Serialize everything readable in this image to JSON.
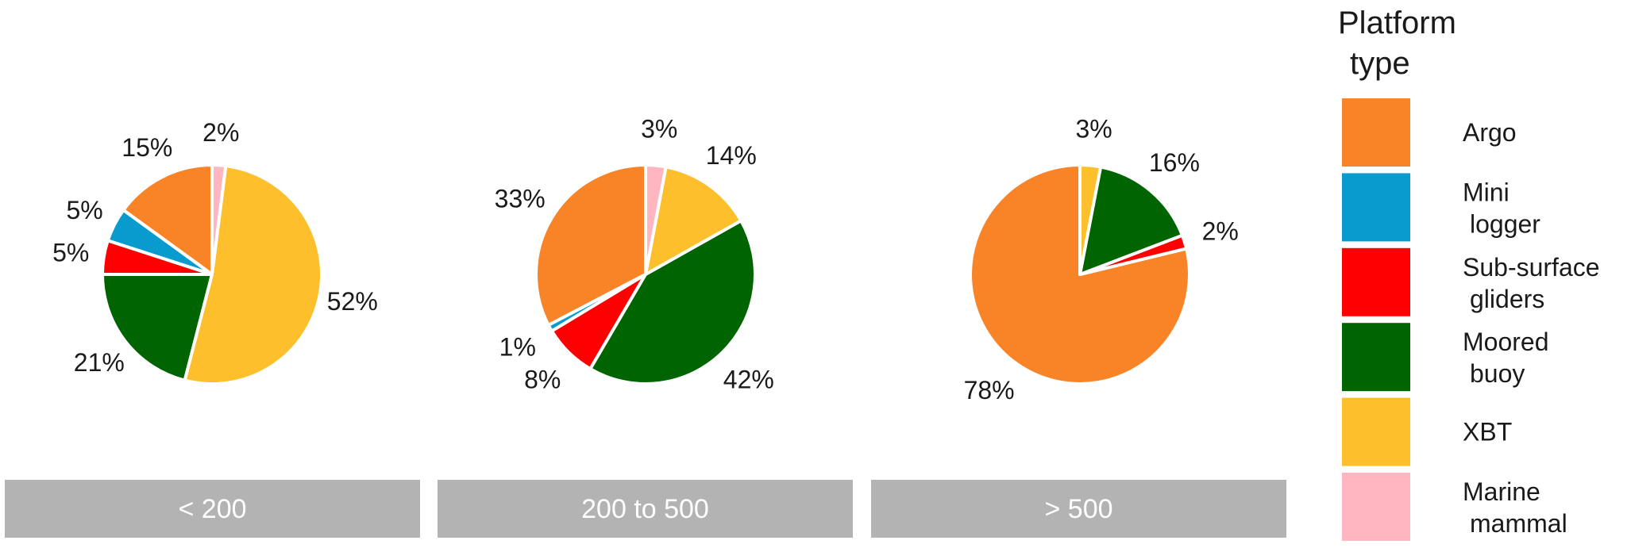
{
  "chart_data": {
    "type": "pie",
    "legend": {
      "title_lines": [
        "Platform",
        "type"
      ],
      "placement": "right",
      "entries": [
        {
          "label_lines": [
            "Argo"
          ],
          "color": "#F98427"
        },
        {
          "label_lines": [
            "Mini",
            "logger"
          ],
          "color": "#0A9BCE"
        },
        {
          "label_lines": [
            "Sub-surface",
            "gliders"
          ],
          "color": "#FF0000"
        },
        {
          "label_lines": [
            "Moored",
            "buoy"
          ],
          "color": "#006400"
        },
        {
          "label_lines": [
            "XBT"
          ],
          "color": "#FDBF2B"
        },
        {
          "label_lines": [
            "Marine",
            "mammal"
          ],
          "color": "#FFB6C1"
        }
      ]
    },
    "categories": [
      "Argo",
      "Mini logger",
      "Sub-surface gliders",
      "Moored buoy",
      "XBT",
      "Marine mammal"
    ],
    "panels": [
      {
        "facet_label": "< 200",
        "values": [
          15,
          5,
          5,
          21,
          52,
          2
        ],
        "labels": [
          "15%",
          "5%",
          "5%",
          "21%",
          "52%",
          "2%"
        ]
      },
      {
        "facet_label": "200 to 500",
        "values": [
          33,
          1,
          8,
          42,
          14,
          3
        ],
        "labels": [
          "33%",
          "1%",
          "8%",
          "42%",
          "14%",
          "3%"
        ]
      },
      {
        "facet_label": "> 500",
        "values": [
          78,
          0,
          2,
          16,
          3,
          0
        ],
        "labels": [
          "78%",
          "",
          "2%",
          "16%",
          "3%",
          ""
        ]
      }
    ],
    "facet_strip_color": "#B3B3B3"
  }
}
